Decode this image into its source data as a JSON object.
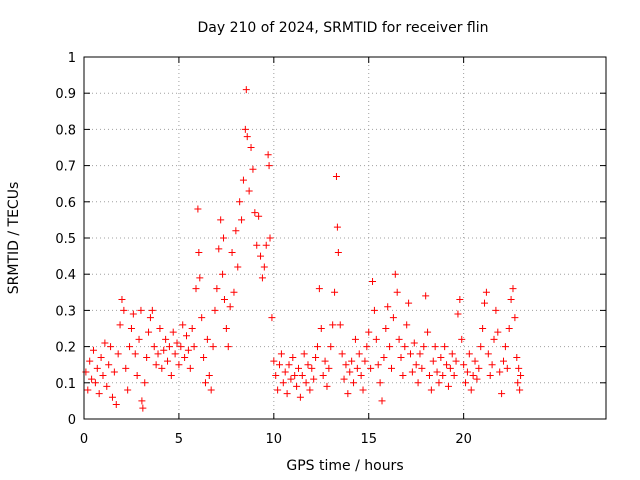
{
  "chart_data": {
    "type": "scatter",
    "title": "Day 210 of 2024, SRMTID for receiver flin",
    "xlabel": "GPS time / hours",
    "ylabel": "SRMTID / TECUs",
    "xlim": [
      0,
      27.5
    ],
    "ylim": [
      0,
      1
    ],
    "x_ticks": [
      "0",
      "5",
      "10",
      "15",
      "20"
    ],
    "y_ticks": [
      "0",
      "0.1",
      "0.2",
      "0.3",
      "0.4",
      "0.5",
      "0.6",
      "0.7",
      "0.8",
      "0.9",
      "1"
    ],
    "x_tick_values": [
      0,
      5,
      10,
      15,
      20
    ],
    "y_tick_values": [
      0,
      0.1,
      0.2,
      0.3,
      0.4,
      0.5,
      0.6,
      0.7,
      0.8,
      0.9,
      1
    ],
    "grid": true,
    "marker": "+",
    "color": "#ff0000",
    "series": [
      {
        "name": "SRMTID",
        "points": [
          [
            0.1,
            0.13
          ],
          [
            0.2,
            0.08
          ],
          [
            0.3,
            0.16
          ],
          [
            0.4,
            0.11
          ],
          [
            0.5,
            0.19
          ],
          [
            0.6,
            0.1
          ],
          [
            0.7,
            0.14
          ],
          [
            0.8,
            0.07
          ],
          [
            0.9,
            0.17
          ],
          [
            1.0,
            0.12
          ],
          [
            1.1,
            0.21
          ],
          [
            1.2,
            0.09
          ],
          [
            1.3,
            0.15
          ],
          [
            1.4,
            0.2
          ],
          [
            1.5,
            0.06
          ],
          [
            1.6,
            0.13
          ],
          [
            1.7,
            0.04
          ],
          [
            1.8,
            0.18
          ],
          [
            1.9,
            0.26
          ],
          [
            2.0,
            0.33
          ],
          [
            2.1,
            0.3
          ],
          [
            2.2,
            0.14
          ],
          [
            2.3,
            0.08
          ],
          [
            2.4,
            0.2
          ],
          [
            2.5,
            0.25
          ],
          [
            2.6,
            0.29
          ],
          [
            2.7,
            0.18
          ],
          [
            2.8,
            0.12
          ],
          [
            2.9,
            0.22
          ],
          [
            3.0,
            0.3
          ],
          [
            3.05,
            0.05
          ],
          [
            3.1,
            0.03
          ],
          [
            3.2,
            0.1
          ],
          [
            3.3,
            0.17
          ],
          [
            3.4,
            0.24
          ],
          [
            3.5,
            0.28
          ],
          [
            3.6,
            0.3
          ],
          [
            3.7,
            0.2
          ],
          [
            3.8,
            0.15
          ],
          [
            3.9,
            0.18
          ],
          [
            4.0,
            0.25
          ],
          [
            4.1,
            0.14
          ],
          [
            4.2,
            0.19
          ],
          [
            4.3,
            0.22
          ],
          [
            4.4,
            0.16
          ],
          [
            4.5,
            0.2
          ],
          [
            4.6,
            0.12
          ],
          [
            4.7,
            0.24
          ],
          [
            4.8,
            0.18
          ],
          [
            4.9,
            0.21
          ],
          [
            5.0,
            0.15
          ],
          [
            5.1,
            0.2
          ],
          [
            5.2,
            0.26
          ],
          [
            5.3,
            0.17
          ],
          [
            5.4,
            0.23
          ],
          [
            5.5,
            0.19
          ],
          [
            5.6,
            0.14
          ],
          [
            5.7,
            0.25
          ],
          [
            5.8,
            0.2
          ],
          [
            5.9,
            0.36
          ],
          [
            6.0,
            0.58
          ],
          [
            6.05,
            0.46
          ],
          [
            6.1,
            0.39
          ],
          [
            6.2,
            0.28
          ],
          [
            6.3,
            0.17
          ],
          [
            6.4,
            0.1
          ],
          [
            6.5,
            0.22
          ],
          [
            6.6,
            0.12
          ],
          [
            6.7,
            0.08
          ],
          [
            6.8,
            0.2
          ],
          [
            6.9,
            0.3
          ],
          [
            7.0,
            0.36
          ],
          [
            7.1,
            0.47
          ],
          [
            7.2,
            0.55
          ],
          [
            7.3,
            0.4
          ],
          [
            7.35,
            0.5
          ],
          [
            7.4,
            0.33
          ],
          [
            7.5,
            0.25
          ],
          [
            7.6,
            0.2
          ],
          [
            7.7,
            0.31
          ],
          [
            7.8,
            0.46
          ],
          [
            7.9,
            0.35
          ],
          [
            8.0,
            0.52
          ],
          [
            8.1,
            0.42
          ],
          [
            8.2,
            0.6
          ],
          [
            8.3,
            0.55
          ],
          [
            8.4,
            0.66
          ],
          [
            8.5,
            0.8
          ],
          [
            8.55,
            0.91
          ],
          [
            8.6,
            0.78
          ],
          [
            8.7,
            0.63
          ],
          [
            8.8,
            0.75
          ],
          [
            8.9,
            0.69
          ],
          [
            9.0,
            0.57
          ],
          [
            9.1,
            0.48
          ],
          [
            9.2,
            0.56
          ],
          [
            9.3,
            0.45
          ],
          [
            9.4,
            0.39
          ],
          [
            9.5,
            0.42
          ],
          [
            9.6,
            0.48
          ],
          [
            9.7,
            0.73
          ],
          [
            9.75,
            0.7
          ],
          [
            9.8,
            0.5
          ],
          [
            9.9,
            0.28
          ],
          [
            10.0,
            0.16
          ],
          [
            10.1,
            0.12
          ],
          [
            10.2,
            0.08
          ],
          [
            10.3,
            0.15
          ],
          [
            10.4,
            0.18
          ],
          [
            10.5,
            0.1
          ],
          [
            10.6,
            0.13
          ],
          [
            10.7,
            0.07
          ],
          [
            10.8,
            0.15
          ],
          [
            10.9,
            0.11
          ],
          [
            11.0,
            0.17
          ],
          [
            11.1,
            0.12
          ],
          [
            11.2,
            0.09
          ],
          [
            11.3,
            0.14
          ],
          [
            11.4,
            0.06
          ],
          [
            11.5,
            0.12
          ],
          [
            11.6,
            0.18
          ],
          [
            11.7,
            0.1
          ],
          [
            11.8,
            0.15
          ],
          [
            11.9,
            0.08
          ],
          [
            12.0,
            0.14
          ],
          [
            12.1,
            0.11
          ],
          [
            12.2,
            0.17
          ],
          [
            12.3,
            0.2
          ],
          [
            12.4,
            0.36
          ],
          [
            12.5,
            0.25
          ],
          [
            12.6,
            0.12
          ],
          [
            12.7,
            0.16
          ],
          [
            12.8,
            0.09
          ],
          [
            12.9,
            0.14
          ],
          [
            13.0,
            0.2
          ],
          [
            13.1,
            0.26
          ],
          [
            13.2,
            0.35
          ],
          [
            13.3,
            0.67
          ],
          [
            13.35,
            0.53
          ],
          [
            13.4,
            0.46
          ],
          [
            13.5,
            0.26
          ],
          [
            13.6,
            0.18
          ],
          [
            13.7,
            0.11
          ],
          [
            13.8,
            0.15
          ],
          [
            13.9,
            0.07
          ],
          [
            14.0,
            0.13
          ],
          [
            14.1,
            0.16
          ],
          [
            14.2,
            0.1
          ],
          [
            14.3,
            0.22
          ],
          [
            14.4,
            0.14
          ],
          [
            14.5,
            0.18
          ],
          [
            14.6,
            0.12
          ],
          [
            14.7,
            0.08
          ],
          [
            14.8,
            0.16
          ],
          [
            14.9,
            0.2
          ],
          [
            15.0,
            0.24
          ],
          [
            15.1,
            0.14
          ],
          [
            15.2,
            0.38
          ],
          [
            15.3,
            0.3
          ],
          [
            15.4,
            0.22
          ],
          [
            15.5,
            0.15
          ],
          [
            15.6,
            0.1
          ],
          [
            15.7,
            0.05
          ],
          [
            15.8,
            0.17
          ],
          [
            15.9,
            0.25
          ],
          [
            16.0,
            0.31
          ],
          [
            16.1,
            0.2
          ],
          [
            16.2,
            0.14
          ],
          [
            16.3,
            0.28
          ],
          [
            16.4,
            0.4
          ],
          [
            16.5,
            0.35
          ],
          [
            16.6,
            0.22
          ],
          [
            16.7,
            0.17
          ],
          [
            16.8,
            0.12
          ],
          [
            16.9,
            0.2
          ],
          [
            17.0,
            0.26
          ],
          [
            17.1,
            0.32
          ],
          [
            17.2,
            0.18
          ],
          [
            17.3,
            0.13
          ],
          [
            17.4,
            0.21
          ],
          [
            17.5,
            0.15
          ],
          [
            17.6,
            0.1
          ],
          [
            17.7,
            0.18
          ],
          [
            17.8,
            0.14
          ],
          [
            17.9,
            0.2
          ],
          [
            18.0,
            0.34
          ],
          [
            18.1,
            0.24
          ],
          [
            18.2,
            0.12
          ],
          [
            18.3,
            0.08
          ],
          [
            18.4,
            0.16
          ],
          [
            18.5,
            0.2
          ],
          [
            18.6,
            0.13
          ],
          [
            18.7,
            0.1
          ],
          [
            18.8,
            0.17
          ],
          [
            18.9,
            0.12
          ],
          [
            19.0,
            0.2
          ],
          [
            19.1,
            0.15
          ],
          [
            19.2,
            0.09
          ],
          [
            19.3,
            0.14
          ],
          [
            19.4,
            0.18
          ],
          [
            19.5,
            0.12
          ],
          [
            19.6,
            0.16
          ],
          [
            19.7,
            0.29
          ],
          [
            19.8,
            0.33
          ],
          [
            19.9,
            0.22
          ],
          [
            20.0,
            0.15
          ],
          [
            20.1,
            0.1
          ],
          [
            20.2,
            0.13
          ],
          [
            20.3,
            0.18
          ],
          [
            20.4,
            0.08
          ],
          [
            20.5,
            0.12
          ],
          [
            20.6,
            0.16
          ],
          [
            20.7,
            0.11
          ],
          [
            20.8,
            0.14
          ],
          [
            20.9,
            0.2
          ],
          [
            21.0,
            0.25
          ],
          [
            21.1,
            0.32
          ],
          [
            21.2,
            0.35
          ],
          [
            21.3,
            0.18
          ],
          [
            21.4,
            0.12
          ],
          [
            21.5,
            0.15
          ],
          [
            21.6,
            0.22
          ],
          [
            21.7,
            0.3
          ],
          [
            21.8,
            0.24
          ],
          [
            21.9,
            0.13
          ],
          [
            22.0,
            0.07
          ],
          [
            22.1,
            0.16
          ],
          [
            22.2,
            0.2
          ],
          [
            22.3,
            0.14
          ],
          [
            22.4,
            0.25
          ],
          [
            22.5,
            0.33
          ],
          [
            22.6,
            0.36
          ],
          [
            22.7,
            0.28
          ],
          [
            22.8,
            0.17
          ],
          [
            22.85,
            0.1
          ],
          [
            22.9,
            0.14
          ],
          [
            22.95,
            0.08
          ],
          [
            23.0,
            0.12
          ]
        ]
      }
    ]
  }
}
